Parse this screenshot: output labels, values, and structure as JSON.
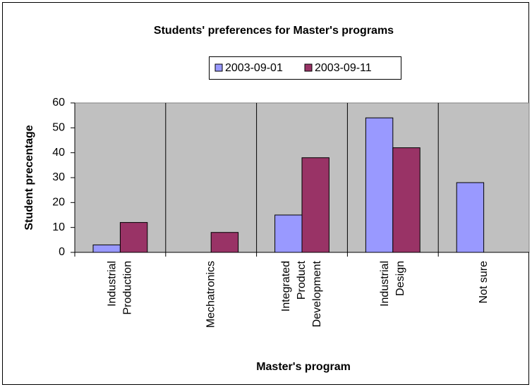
{
  "chart_data": {
    "type": "bar",
    "title": "Students' preferences for Master's programs",
    "xlabel": "Master's program",
    "ylabel": "Student precentage",
    "categories": [
      [
        "Industrial",
        "Production"
      ],
      [
        "Mechatronics"
      ],
      [
        "Integrated",
        "Product",
        "Development"
      ],
      [
        "Industrial",
        "Design"
      ],
      [
        "Not sure"
      ]
    ],
    "series": [
      {
        "name": "2003-09-01",
        "color": "#9999ff",
        "values": [
          3,
          0,
          15,
          54,
          28
        ]
      },
      {
        "name": "2003-09-11",
        "color": "#993366",
        "values": [
          12,
          8,
          38,
          42,
          0
        ]
      }
    ],
    "ylim": [
      0,
      60
    ],
    "yticks": [
      0,
      10,
      20,
      30,
      40,
      50,
      60
    ],
    "grid": false,
    "legend": "top"
  }
}
